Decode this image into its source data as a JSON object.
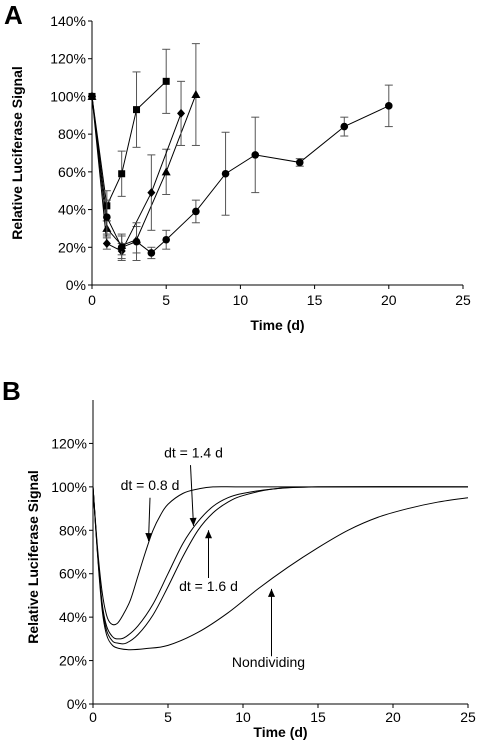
{
  "chart_data": [
    {
      "panel": "A",
      "type": "line",
      "xlabel": "Time (d)",
      "ylabel": "Relative Luciferase Signal",
      "xlim": [
        0,
        25
      ],
      "ylim": [
        0,
        140
      ],
      "x_ticks": [
        "0",
        "5",
        "10",
        "15",
        "20",
        "25"
      ],
      "y_ticks": [
        "0%",
        "20%",
        "40%",
        "60%",
        "80%",
        "100%",
        "120%",
        "140%"
      ],
      "grid": false,
      "series": [
        {
          "marker": "square",
          "x": [
            0,
            1,
            2,
            3,
            5
          ],
          "y": [
            100,
            42,
            59,
            93,
            108
          ],
          "err": [
            0,
            8,
            12,
            20,
            17
          ]
        },
        {
          "marker": "triangle",
          "x": [
            0,
            1,
            2,
            3,
            5,
            7
          ],
          "y": [
            100,
            30,
            21,
            24,
            60,
            101
          ],
          "err": [
            0,
            4,
            5,
            7,
            12,
            27
          ]
        },
        {
          "marker": "diamond",
          "x": [
            0,
            1,
            2,
            4,
            6
          ],
          "y": [
            100,
            22,
            18,
            49,
            91
          ],
          "err": [
            0,
            3,
            4,
            20,
            17
          ]
        },
        {
          "marker": "circle",
          "x": [
            0,
            1,
            2,
            3,
            4,
            5,
            7,
            9,
            11,
            14,
            17,
            20
          ],
          "y": [
            100,
            36,
            20,
            23,
            17,
            24,
            39,
            59,
            69,
            65,
            84,
            95
          ],
          "err": [
            0,
            9,
            7,
            10,
            3,
            5,
            6,
            22,
            20,
            2,
            5,
            11
          ]
        }
      ]
    },
    {
      "panel": "B",
      "type": "line",
      "xlabel": "Time (d)",
      "ylabel": "Relative Luciferase Signal",
      "xlim": [
        0,
        25
      ],
      "ylim": [
        0,
        140
      ],
      "x_ticks": [
        "0",
        "5",
        "10",
        "15",
        "20",
        "25"
      ],
      "y_ticks": [
        "0%",
        "20%",
        "40%",
        "60%",
        "80%",
        "100%",
        "120%"
      ],
      "grid": false,
      "series": [
        {
          "name": "dt = 0.8 d",
          "x": [
            0,
            0.3,
            0.6,
            0.9,
            1.2,
            1.6,
            2,
            2.5,
            3,
            3.5,
            4,
            4.5,
            5,
            6,
            7,
            8,
            10,
            15,
            25
          ],
          "y": [
            100,
            72,
            52,
            41,
            37,
            37,
            41,
            48,
            59,
            70,
            80,
            87,
            92,
            97,
            99,
            100,
            100,
            100,
            100
          ]
        },
        {
          "name": "dt = 1.4 d",
          "x": [
            0,
            0.3,
            0.6,
            0.9,
            1.3,
            1.7,
            2.2,
            3,
            4,
            5,
            6,
            7,
            8,
            9,
            10,
            12,
            15,
            25
          ],
          "y": [
            100,
            70,
            47,
            36,
            31,
            30,
            31,
            36,
            46,
            60,
            74,
            84,
            91,
            95,
            97,
            99,
            100,
            100
          ]
        },
        {
          "name": "dt = 1.6 d",
          "x": [
            0,
            0.3,
            0.6,
            0.9,
            1.3,
            1.7,
            2.2,
            3,
            4,
            5,
            6,
            7,
            8,
            9,
            10,
            12,
            15,
            25
          ],
          "y": [
            100,
            70,
            46,
            34,
            29,
            28,
            28,
            32,
            41,
            54,
            68,
            80,
            88,
            93,
            96,
            99,
            100,
            100
          ]
        },
        {
          "name": "Nondividing",
          "x": [
            0,
            0.3,
            0.6,
            0.9,
            1.3,
            1.8,
            2.5,
            3.5,
            5,
            7,
            9,
            11,
            13,
            15,
            17,
            19,
            21,
            23,
            25
          ],
          "y": [
            100,
            69,
            44,
            32,
            27,
            25.5,
            25,
            25.5,
            27,
            33,
            42,
            53,
            63,
            72,
            80,
            86,
            90,
            93,
            95
          ]
        }
      ],
      "annotations": [
        {
          "text": "dt = 0.8 d",
          "points_to": "dt = 0.8 d"
        },
        {
          "text": "dt = 1.4 d",
          "points_to": "dt = 1.4 d"
        },
        {
          "text": "dt = 1.6 d",
          "points_to": "dt = 1.6 d"
        },
        {
          "text": "Nondividing",
          "points_to": "Nondividing"
        }
      ]
    }
  ]
}
